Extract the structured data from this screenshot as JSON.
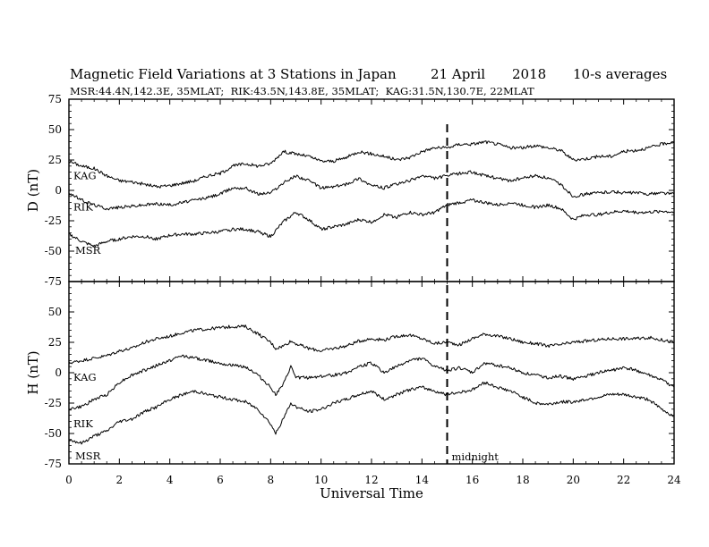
{
  "chart_data": {
    "type": "line",
    "title": "Magnetic Field Variations at 3 Stations in Japan",
    "date": "21 April",
    "year": "2018",
    "averaging": "10-s averages",
    "subtitle": "MSR:44.4N,142.3E, 35MLAT;  RIK:43.5N,143.8E, 35MLAT;  KAG:31.5N,130.7E, 22MLAT",
    "xlabel": "Universal Time",
    "xlim": [
      0,
      24
    ],
    "xticks": [
      "0",
      "2",
      "4",
      "6",
      "8",
      "10",
      "12",
      "14",
      "16",
      "18",
      "20",
      "22",
      "24"
    ],
    "marker": {
      "x": 15,
      "label": "midnight",
      "style": "dashed"
    },
    "panels": [
      {
        "id": "D",
        "ylabel": "D (nT)",
        "ylim": [
          -75,
          75
        ],
        "yticks": [
          "75",
          "50",
          "25",
          "0",
          "-25",
          "-50",
          "-75"
        ],
        "series": [
          {
            "name": "KAG",
            "x": [
              0,
              0.5,
              1,
              1.5,
              2,
              2.5,
              3,
              3.5,
              4,
              4.5,
              5,
              5.5,
              6,
              6.5,
              7,
              7.5,
              8,
              8.5,
              9,
              9.5,
              10,
              10.5,
              11,
              11.5,
              12,
              12.5,
              13,
              13.5,
              14,
              14.5,
              15,
              15.5,
              16,
              16.5,
              17,
              17.5,
              18,
              18.5,
              19,
              19.5,
              20,
              20.5,
              21,
              21.5,
              22,
              22.5,
              23,
              23.5,
              24
            ],
            "y": [
              24,
              20,
              18,
              12,
              8,
              7,
              5,
              3,
              4,
              6,
              8,
              12,
              14,
              20,
              22,
              20,
              22,
              32,
              30,
              28,
              24,
              24,
              27,
              32,
              30,
              28,
              25,
              27,
              32,
              35,
              35,
              38,
              38,
              40,
              38,
              35,
              35,
              37,
              35,
              33,
              25,
              26,
              28,
              28,
              32,
              33,
              35,
              38,
              40
            ]
          },
          {
            "name": "RIK",
            "x": [
              0,
              0.5,
              1,
              1.5,
              2,
              2.5,
              3,
              3.5,
              4,
              4.5,
              5,
              5.5,
              6,
              6.5,
              7,
              7.5,
              8,
              8.5,
              9,
              9.5,
              10,
              10.5,
              11,
              11.5,
              12,
              12.5,
              13,
              13.5,
              14,
              14.5,
              15,
              15.5,
              16,
              16.5,
              17,
              17.5,
              18,
              18.5,
              19,
              19.5,
              20,
              20.5,
              21,
              21.5,
              22,
              22.5,
              23,
              23.5,
              24
            ],
            "y": [
              -2,
              -8,
              -12,
              -15,
              -14,
              -13,
              -12,
              -11,
              -12,
              -10,
              -8,
              -6,
              -3,
              2,
              2,
              -3,
              -2,
              6,
              12,
              8,
              2,
              3,
              5,
              10,
              4,
              2,
              5,
              8,
              12,
              10,
              12,
              14,
              15,
              12,
              10,
              8,
              10,
              12,
              10,
              5,
              -5,
              -3,
              -2,
              -1,
              -2,
              -2,
              -3,
              -2,
              -3
            ]
          },
          {
            "name": "MSR",
            "x": [
              0,
              0.5,
              1,
              1.5,
              2,
              2.5,
              3,
              3.5,
              4,
              4.5,
              5,
              5.5,
              6,
              6.5,
              7,
              7.5,
              8,
              8.5,
              9,
              9.5,
              10,
              10.5,
              11,
              11.5,
              12,
              12.5,
              13,
              13.5,
              14,
              14.5,
              15,
              15.5,
              16,
              16.5,
              17,
              17.5,
              18,
              18.5,
              19,
              19.5,
              20,
              20.5,
              21,
              21.5,
              22,
              22.5,
              23,
              23.5,
              24
            ],
            "y": [
              -36,
              -42,
              -46,
              -42,
              -40,
              -38,
              -38,
              -40,
              -37,
              -36,
              -36,
              -35,
              -34,
              -32,
              -32,
              -34,
              -38,
              -26,
              -18,
              -24,
              -32,
              -30,
              -28,
              -24,
              -26,
              -20,
              -22,
              -18,
              -20,
              -18,
              -12,
              -10,
              -8,
              -10,
              -12,
              -10,
              -12,
              -14,
              -12,
              -15,
              -24,
              -20,
              -20,
              -18,
              -17,
              -18,
              -18,
              -17,
              -18
            ]
          }
        ]
      },
      {
        "id": "H",
        "ylabel": "H (nT)",
        "ylim": [
          -75,
          75
        ],
        "yticks": [
          "75",
          "50",
          "25",
          "0",
          "-25",
          "-50",
          "-75"
        ],
        "series": [
          {
            "name": "KAG",
            "x": [
              0,
              0.5,
              1,
              1.5,
              2,
              2.5,
              3,
              3.5,
              4,
              4.5,
              5,
              5.5,
              6,
              6.5,
              7,
              7.5,
              8,
              8.2,
              8.5,
              8.8,
              9,
              9.5,
              10,
              10.5,
              11,
              11.5,
              12,
              12.5,
              13,
              13.5,
              14,
              14.5,
              15,
              15.5,
              16,
              16.5,
              17,
              17.5,
              18,
              18.5,
              19,
              19.5,
              20,
              20.5,
              21,
              21.5,
              22,
              22.5,
              23,
              23.5,
              24
            ],
            "y": [
              8,
              10,
              12,
              14,
              18,
              20,
              25,
              28,
              30,
              33,
              35,
              36,
              37,
              38,
              38,
              32,
              25,
              20,
              22,
              26,
              24,
              20,
              18,
              20,
              22,
              26,
              28,
              27,
              30,
              31,
              28,
              24,
              25,
              23,
              28,
              32,
              30,
              28,
              25,
              24,
              22,
              23,
              25,
              26,
              27,
              28,
              28,
              28,
              29,
              27,
              25
            ]
          },
          {
            "name": "RIK",
            "x": [
              0,
              0.5,
              1,
              1.5,
              2,
              2.5,
              3,
              3.5,
              4,
              4.5,
              5,
              5.5,
              6,
              6.5,
              7,
              7.5,
              8,
              8.2,
              8.5,
              8.8,
              9,
              9.5,
              10,
              10.5,
              11,
              11.5,
              12,
              12.5,
              13,
              13.5,
              14,
              14.5,
              15,
              15.5,
              16,
              16.5,
              17,
              17.5,
              18,
              18.5,
              19,
              19.5,
              20,
              20.5,
              21,
              21.5,
              22,
              22.5,
              23,
              23.5,
              24
            ],
            "y": [
              -30,
              -28,
              -22,
              -18,
              -8,
              -2,
              2,
              6,
              10,
              14,
              12,
              10,
              8,
              6,
              5,
              -2,
              -12,
              -18,
              -10,
              5,
              -4,
              -4,
              -3,
              -2,
              0,
              5,
              8,
              0,
              5,
              10,
              12,
              5,
              2,
              4,
              0,
              8,
              6,
              4,
              0,
              -2,
              -4,
              -3,
              -5,
              -3,
              0,
              2,
              4,
              2,
              -2,
              -6,
              -12
            ]
          },
          {
            "name": "MSR",
            "x": [
              0,
              0.5,
              1,
              1.5,
              2,
              2.5,
              3,
              3.5,
              4,
              4.5,
              5,
              5.5,
              6,
              6.5,
              7,
              7.5,
              8,
              8.2,
              8.5,
              8.8,
              9,
              9.5,
              10,
              10.5,
              11,
              11.5,
              12,
              12.5,
              13,
              13.5,
              14,
              14.5,
              15,
              15.5,
              16,
              16.5,
              17,
              17.5,
              18,
              18.5,
              19,
              19.5,
              20,
              20.5,
              21,
              21.5,
              22,
              22.5,
              23,
              23.5,
              24
            ],
            "y": [
              -55,
              -58,
              -52,
              -48,
              -40,
              -38,
              -32,
              -28,
              -22,
              -18,
              -15,
              -18,
              -20,
              -22,
              -24,
              -30,
              -42,
              -50,
              -38,
              -25,
              -28,
              -32,
              -30,
              -25,
              -22,
              -18,
              -15,
              -22,
              -18,
              -14,
              -12,
              -15,
              -18,
              -16,
              -14,
              -8,
              -12,
              -15,
              -20,
              -25,
              -26,
              -24,
              -24,
              -22,
              -20,
              -18,
              -18,
              -20,
              -22,
              -30,
              -36
            ]
          }
        ]
      }
    ]
  }
}
